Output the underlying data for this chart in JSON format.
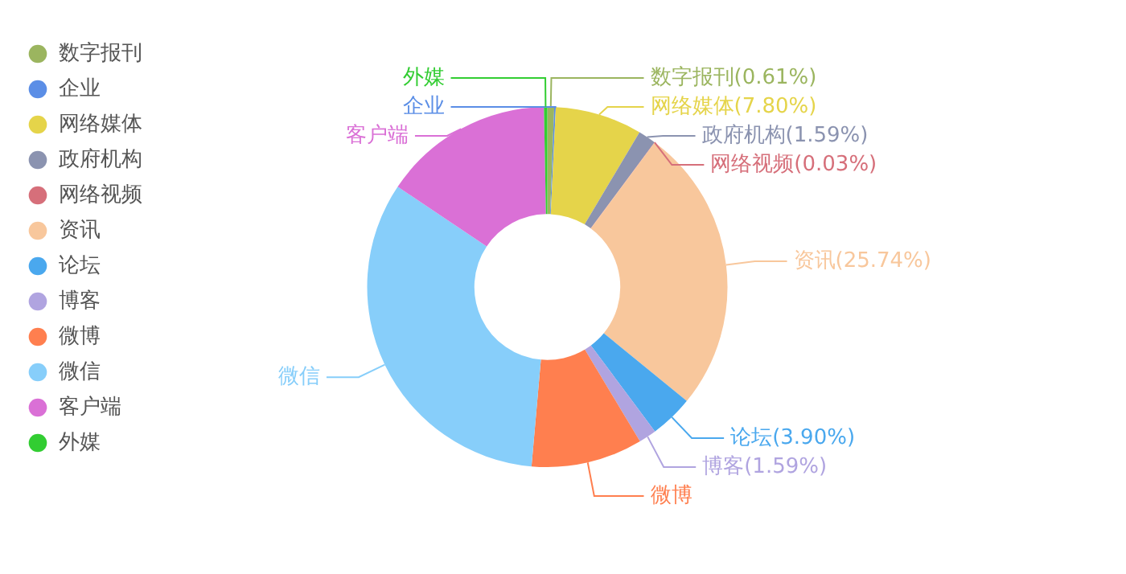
{
  "chart_data": {
    "type": "donut",
    "categories": [
      "数字报刊",
      "企业",
      "网络媒体",
      "政府机构",
      "网络视频",
      "资讯",
      "论坛",
      "博客",
      "微博",
      "微信",
      "客户端",
      "外媒"
    ],
    "values": [
      0.61,
      0.14,
      7.8,
      1.59,
      0.03,
      25.74,
      3.9,
      1.59,
      10,
      33,
      15.3,
      0.3
    ],
    "value_labels": [
      "数字报刊(0.61%)",
      null,
      "网络媒体(7.80%)",
      "政府机构(1.59%)",
      "网络视频(0.03%)",
      "资讯(25.74%)",
      "论坛(3.90%)",
      "博客(1.59%)",
      null,
      null,
      null,
      null
    ],
    "colors": [
      "#9bb55f",
      "#5b8ee6",
      "#e5d44a",
      "#8b93b0",
      "#d66f7a",
      "#f8c79c",
      "#4aa8ee",
      "#b0a4e0",
      "#ff7f4f",
      "#87cefa",
      "#da70d6",
      "#32cd32"
    ],
    "legend": "left"
  }
}
